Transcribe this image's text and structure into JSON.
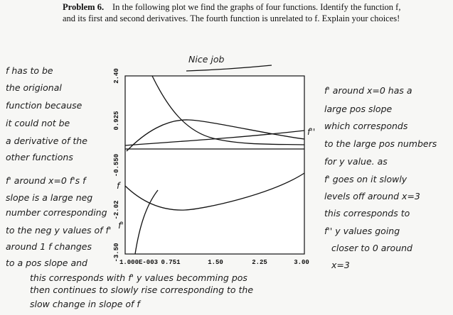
{
  "header": {
    "label": "Problem 6.",
    "lines": [
      "In the following plot we find the graphs of four functions. Identify the function f,",
      "and its first and second derivatives. The fourth function is unrelated to f. Explain your choices!"
    ]
  },
  "plot": {
    "y_ticks": [
      "2.40",
      "0.925",
      "-0.550",
      "-2.02",
      "-3.50"
    ],
    "x_ticks": [
      "1.000E-003",
      "0.751",
      "1.50",
      "2.25",
      "3.00"
    ]
  },
  "grader_note": "Nice job",
  "curve_labels": [
    "f''",
    "f",
    "f'"
  ],
  "left_note": [
    "f has to be",
    "the origional",
    "function because",
    "it could not be",
    "a derivative of the",
    "other functions",
    "f' around x=0 f's f",
    "slope is a large neg",
    "number corresponding",
    "to the neg y values of f'",
    "around 1 f changes",
    "to a pos slope and",
    "this corresponds with f' y values becomming pos",
    "then continues to slowly rise corresponding to the",
    "slow change in slope of f"
  ],
  "right_note": [
    "f' around x=0 has a",
    "large pos slope",
    "which corresponds",
    "to the large pos numbers",
    "for y value. as",
    "f' goes on it slowly",
    "levels off around x=3",
    "this corresponds to",
    "f'' y values going",
    "closer to 0 around",
    "x=3"
  ]
}
